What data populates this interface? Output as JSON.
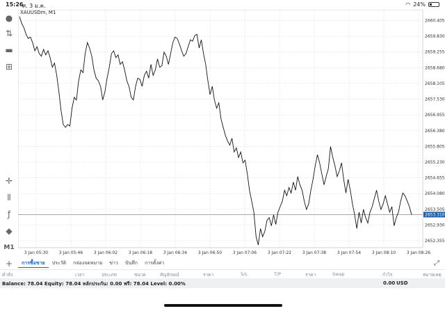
{
  "status": {
    "time": "15:26",
    "date": "ศ. 3 ม.ค.",
    "battery": "24%",
    "battery_level": 0.24
  },
  "chart": {
    "symbol": "XAUUSDm, M1",
    "current_price": "2653.310"
  },
  "chart_data": {
    "type": "line",
    "symbol": "XAUUSDm",
    "timeframe": "M1",
    "x_ticks": [
      "3 Jan 05:30",
      "3 Jan 05:46",
      "3 Jan 06:02",
      "3 Jan 06:18",
      "3 Jan 06:34",
      "3 Jan 06:50",
      "3 Jan 07:06",
      "3 Jan 07:22",
      "3 Jan 07:38",
      "3 Jan 07:54",
      "3 Jan 08:10",
      "3 Jan 08:26"
    ],
    "y_ticks": [
      "2660.405",
      "2659.830",
      "2659.255",
      "2658.680",
      "2658.105",
      "2657.530",
      "2656.955",
      "2656.380",
      "2655.805",
      "2655.230",
      "2654.655",
      "2654.080",
      "2653.505",
      "2652.930",
      "2652.355"
    ],
    "ylim": [
      2652.1,
      2660.8
    ],
    "current_price": 2653.31,
    "values": [
      2660.55,
      2660.3,
      2660.15,
      2659.9,
      2659.75,
      2659.8,
      2659.6,
      2659.3,
      2659.45,
      2659.2,
      2659.1,
      2659.35,
      2659.15,
      2659.3,
      2659.05,
      2658.7,
      2658.85,
      2658.4,
      2657.8,
      2657.1,
      2656.6,
      2656.5,
      2656.6,
      2656.55,
      2657.2,
      2657.6,
      2657.5,
      2658.2,
      2658.6,
      2658.5,
      2659.2,
      2659.6,
      2659.4,
      2659.1,
      2658.6,
      2658.3,
      2658.2,
      2658.0,
      2657.5,
      2657.8,
      2658.3,
      2658.7,
      2659.2,
      2659.3,
      2659.05,
      2659.15,
      2658.8,
      2658.9,
      2658.6,
      2658.2,
      2658.0,
      2657.6,
      2657.5,
      2658.0,
      2658.3,
      2658.25,
      2658.0,
      2658.4,
      2658.55,
      2658.3,
      2658.8,
      2658.4,
      2658.6,
      2659.0,
      2658.7,
      2658.75,
      2659.25,
      2659.1,
      2658.8,
      2659.2,
      2659.6,
      2659.8,
      2659.75,
      2659.55,
      2659.3,
      2659.1,
      2659.2,
      2659.45,
      2659.7,
      2659.65,
      2659.85,
      2659.9,
      2659.4,
      2659.7,
      2659.2,
      2658.8,
      2658.2,
      2657.7,
      2658.0,
      2657.5,
      2657.2,
      2657.4,
      2656.8,
      2656.5,
      2656.2,
      2656.0,
      2655.85,
      2656.1,
      2655.6,
      2655.75,
      2655.4,
      2655.6,
      2655.2,
      2655.3,
      2654.8,
      2654.2,
      2653.8,
      2653.4,
      2652.5,
      2652.2,
      2652.8,
      2652.5,
      2652.7,
      2653.1,
      2653.2,
      2652.9,
      2653.3,
      2652.95,
      2653.4,
      2653.6,
      2653.8,
      2654.2,
      2654.0,
      2654.3,
      2654.1,
      2654.5,
      2654.2,
      2654.7,
      2654.4,
      2654.2,
      2653.8,
      2653.5,
      2653.7,
      2654.2,
      2654.6,
      2655.1,
      2655.5,
      2655.2,
      2654.8,
      2654.4,
      2654.7,
      2655.0,
      2655.8,
      2655.4,
      2655.1,
      2654.7,
      2654.9,
      2655.2,
      2654.6,
      2654.1,
      2654.6,
      2654.2,
      2653.7,
      2653.3,
      2652.8,
      2653.4,
      2653.0,
      2653.5,
      2653.2,
      2653.0,
      2653.4,
      2653.6,
      2653.9,
      2654.2,
      2653.8,
      2653.5,
      2653.7,
      2654.0,
      2653.7,
      2653.4,
      2653.6,
      2652.9,
      2653.2,
      2653.4,
      2653.8,
      2654.1,
      2654.0,
      2653.8,
      2653.6,
      2653.3
    ],
    "grid": true,
    "price_line": true
  },
  "toolbar": {
    "tools": [
      {
        "name": "person-icon",
        "glyph": "👤"
      },
      {
        "name": "up-down-arrow-icon",
        "glyph": "⇅"
      },
      {
        "name": "chat-icon",
        "glyph": "💬"
      },
      {
        "name": "add-document-icon",
        "glyph": "⊞"
      },
      {
        "name": "crosshair-icon",
        "glyph": "✛"
      },
      {
        "name": "candlestick-icon",
        "glyph": "⚿"
      },
      {
        "name": "function-icon",
        "glyph": "𝑓"
      },
      {
        "name": "shapes-icon",
        "glyph": "◆"
      }
    ],
    "timeframe": "M1"
  },
  "tabs": {
    "plus": "+",
    "items": [
      {
        "label": "การซื้อขาย",
        "active": true
      },
      {
        "label": "ประวัติ",
        "active": false
      },
      {
        "label": "กล่องจดหมาย",
        "active": false
      },
      {
        "label": "ข่าว",
        "active": false
      },
      {
        "label": "บันทึก",
        "active": false
      },
      {
        "label": "การตั้งค่า",
        "active": false
      }
    ],
    "expand": "⤢"
  },
  "table": {
    "headers": [
      {
        "label": "คำสั่ง",
        "pos": 3
      },
      {
        "label": "เวลา",
        "pos": 108
      },
      {
        "label": "ประเภท",
        "pos": 146
      },
      {
        "label": "ขนาด",
        "pos": 193
      },
      {
        "label": "สัญลักษณ์",
        "pos": 230
      },
      {
        "label": "ราคา",
        "pos": 292
      },
      {
        "label": "S/L",
        "pos": 346
      },
      {
        "label": "T/P",
        "pos": 394
      },
      {
        "label": "ราคา",
        "pos": 439
      },
      {
        "label": "Swap",
        "pos": 478
      },
      {
        "label": "กำไร",
        "pos": 550
      },
      {
        "label": "หมายเหตุ",
        "pos": 608
      }
    ]
  },
  "balance": {
    "summary": "Balance: 78.04 Equity: 78.04 หลักประกัน: 0.00 ฟรี: 78.04 Level: 0.00%",
    "profit": "0.00",
    "currency": "USD"
  }
}
